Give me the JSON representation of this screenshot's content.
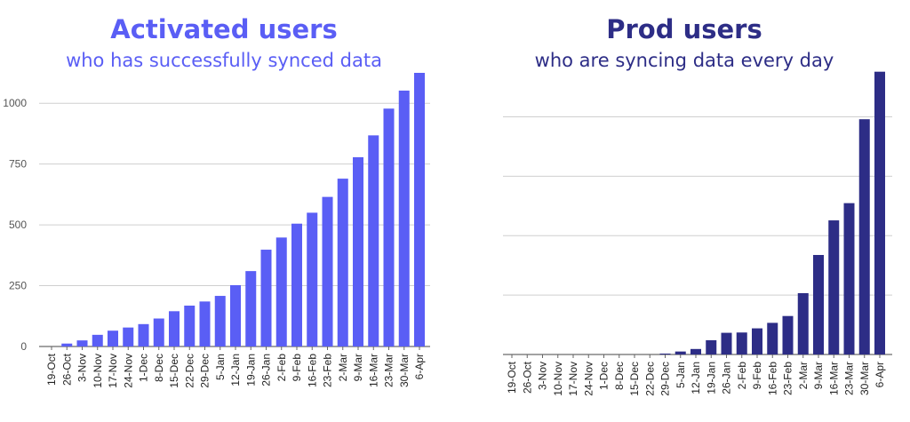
{
  "left": {
    "title": "Activated users",
    "subtitle": "who has successfully synced data",
    "color": "#5a5ef5"
  },
  "right": {
    "title": "Prod users",
    "subtitle": "who are syncing data every day",
    "color": "#2d2d86"
  },
  "chart_data": [
    {
      "type": "bar",
      "title": "Activated users",
      "subtitle": "who has successfully synced data",
      "xlabel": "",
      "ylabel": "",
      "categories": [
        "19-Oct",
        "26-Oct",
        "3-Nov",
        "10-Nov",
        "17-Nov",
        "24-Nov",
        "1-Dec",
        "8-Dec",
        "15-Dec",
        "22-Dec",
        "29-Dec",
        "5-Jan",
        "12-Jan",
        "19-Jan",
        "26-Jan",
        "2-Feb",
        "9-Feb",
        "16-Feb",
        "23-Feb",
        "2-Mar",
        "9-Mar",
        "16-Mar",
        "23-Mar",
        "30-Mar",
        "6-Apr"
      ],
      "values": [
        0,
        12,
        25,
        48,
        65,
        78,
        92,
        115,
        145,
        168,
        185,
        208,
        252,
        310,
        398,
        448,
        505,
        550,
        615,
        690,
        778,
        868,
        978,
        1052,
        1125
      ],
      "ylim": [
        0,
        1125
      ],
      "yticks": [
        0,
        250,
        500,
        750,
        1000
      ],
      "grid": true,
      "color": "#5a5ef5"
    },
    {
      "type": "bar",
      "title": "Prod users",
      "subtitle": "who are syncing data every day",
      "xlabel": "",
      "ylabel": "",
      "categories": [
        "19-Oct",
        "26-Oct",
        "3-Nov",
        "10-Nov",
        "17-Nov",
        "24-Nov",
        "1-Dec",
        "8-Dec",
        "15-Dec",
        "22-Dec",
        "29-Dec",
        "5-Jan",
        "12-Jan",
        "19-Jan",
        "26-Jan",
        "2-Feb",
        "9-Feb",
        "16-Feb",
        "23-Feb",
        "2-Mar",
        "9-Mar",
        "16-Mar",
        "23-Mar",
        "30-Mar",
        "6-Apr"
      ],
      "values": [
        0,
        0,
        0,
        0,
        0,
        0,
        0,
        0,
        0,
        0,
        0.6,
        2.0,
        3.7,
        9.6,
        14.6,
        14.8,
        17.6,
        21.3,
        25.9,
        41.3,
        67.0,
        90.3,
        101.9,
        158.4,
        190.4
      ],
      "ylim": [
        0,
        198
      ],
      "yticks": [
        0,
        40,
        80,
        120,
        160
      ],
      "ytick_labels_shown": false,
      "grid": true,
      "color": "#2d2d86"
    }
  ]
}
